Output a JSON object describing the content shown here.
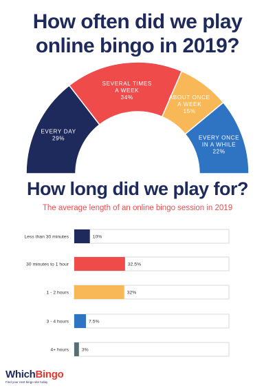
{
  "header": {
    "title_line1": "How often did we play",
    "title_line2": "online bingo in 2019?"
  },
  "section2": {
    "title": "How long did we play for?",
    "subtitle": "The average length of an online bingo session in 2019"
  },
  "logo": {
    "which": "Which",
    "bingo": "Bingo",
    "tagline": "Find your next bingo site today"
  },
  "colors": {
    "navy": "#1f2a5c",
    "red": "#ef4b4b",
    "yellow": "#f9b857",
    "blue": "#2f73c3",
    "slate": "#5a6f74"
  },
  "chart_data": [
    {
      "type": "pie",
      "subtype": "semi-donut",
      "title": "How often did we play online bingo in 2019?",
      "slices": [
        {
          "label_lines": [
            "EVERY DAY"
          ],
          "value": 29,
          "value_label": "29%",
          "color": "#1f2a5c"
        },
        {
          "label_lines": [
            "SEVERAL TIMES",
            "A WEEK"
          ],
          "value": 34,
          "value_label": "34%",
          "color": "#ef4b4b"
        },
        {
          "label_lines": [
            "ABOUT ONCE",
            "A WEEK"
          ],
          "value": 15,
          "value_label": "15%",
          "color": "#f9b857"
        },
        {
          "label_lines": [
            "EVERY ONCE",
            "IN A WHILE"
          ],
          "value": 22,
          "value_label": "22%",
          "color": "#2f73c3"
        }
      ]
    },
    {
      "type": "bar",
      "orientation": "horizontal",
      "title": "How long did we play for?",
      "subtitle": "The average length of an online bingo session in 2019",
      "categories": [
        "Less than 30 minutes",
        "30 minutes to 1 hour",
        "1 - 2 hours",
        "3 - 4 hours",
        "4+ hours"
      ],
      "values": [
        10,
        32.5,
        32,
        7.5,
        3
      ],
      "value_labels": [
        "10%",
        "32.5%",
        "32%",
        "7.5%",
        "3%"
      ],
      "colors": [
        "#1f2a5c",
        "#ef4b4b",
        "#f9b857",
        "#2f73c3",
        "#5a6f74"
      ],
      "xlim": [
        0,
        100
      ]
    }
  ]
}
